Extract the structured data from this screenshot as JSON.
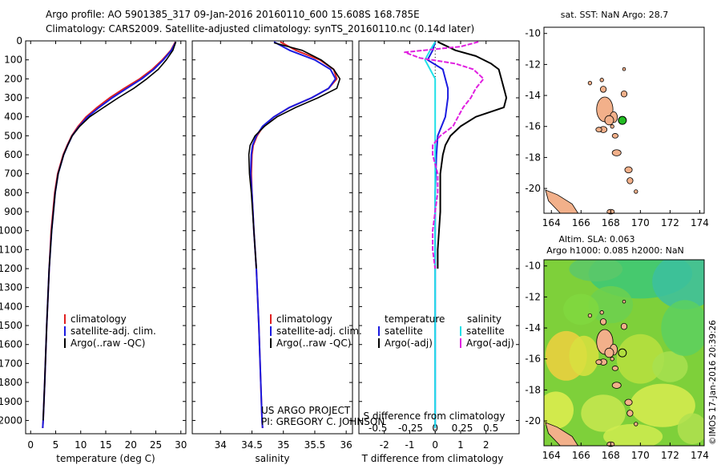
{
  "header": {
    "line1": "Argo profile: AO 5901385_317 09-Jan-2016 20160110_600 15.608S 168.785E",
    "line2": "Climatology: CARS2009. Satellite-adjusted climatology: synTS_20160110.nc (0.14d later)"
  },
  "depth_axis": {
    "ylim": [
      0,
      2070
    ],
    "ticks": [
      0,
      100,
      200,
      300,
      400,
      500,
      600,
      700,
      800,
      900,
      1000,
      1100,
      1200,
      1300,
      1400,
      1500,
      1600,
      1700,
      1800,
      1900,
      2000
    ]
  },
  "colors": {
    "climatology": "#e02020",
    "satellite": "#1b1be0",
    "argo": "#000000",
    "sal_satellite": "#20e0e8",
    "sal_argo": "#e020e0",
    "land": "#f2b08a",
    "sat_marker": "#22bb22"
  },
  "chart_data": [
    {
      "type": "line",
      "xlabel": "temperature (deg C)",
      "xlim": [
        -1,
        31
      ],
      "xticks": [
        0,
        5,
        10,
        15,
        20,
        25,
        30
      ],
      "legend": [
        "climatology",
        "satellite-adj. clim.",
        "Argo(..raw -QC)"
      ],
      "series": [
        {
          "name": "climatology",
          "color": "#e02020",
          "depth": [
            5,
            50,
            100,
            150,
            200,
            250,
            300,
            350,
            400,
            450,
            500,
            550,
            600,
            700,
            800,
            1000,
            1200,
            1500,
            1800,
            2000,
            2040
          ],
          "values": [
            28.9,
            28.0,
            26.3,
            24.3,
            21.8,
            18.7,
            15.8,
            13.3,
            11.1,
            9.5,
            8.2,
            7.3,
            6.5,
            5.4,
            4.8,
            4.1,
            3.7,
            3.2,
            2.8,
            2.5,
            2.4
          ]
        },
        {
          "name": "satellite-adj. clim.",
          "color": "#1b1be0",
          "depth": [
            5,
            50,
            100,
            150,
            200,
            250,
            300,
            350,
            400,
            450,
            500,
            550,
            600,
            700,
            800,
            1000,
            1200,
            1500,
            1800,
            2000,
            2040
          ],
          "values": [
            29.0,
            28.1,
            26.5,
            24.6,
            22.2,
            19.2,
            16.3,
            13.7,
            11.4,
            9.7,
            8.3,
            7.4,
            6.6,
            5.5,
            4.9,
            4.2,
            3.7,
            3.2,
            2.8,
            2.5,
            2.4
          ]
        },
        {
          "name": "Argo(..raw -QC)",
          "color": "#000000",
          "depth": [
            5,
            50,
            100,
            150,
            200,
            250,
            300,
            350,
            400,
            450,
            500,
            550,
            600,
            700,
            800,
            1000,
            1200,
            1500,
            1800,
            2000
          ],
          "values": [
            29.0,
            28.4,
            27.1,
            25.5,
            23.2,
            20.6,
            17.5,
            14.6,
            11.8,
            9.8,
            8.3,
            7.4,
            6.6,
            5.5,
            4.9,
            4.2,
            3.7,
            3.2,
            2.8,
            2.5
          ]
        }
      ]
    },
    {
      "type": "line",
      "xlabel": "salinity",
      "xlim": [
        33.55,
        36.1
      ],
      "xticks": [
        34,
        34.5,
        35,
        35.5,
        36
      ],
      "legend": [
        "climatology",
        "satellite-adj. clim.",
        "Argo(..raw -QC)"
      ],
      "series": [
        {
          "name": "climatology",
          "color": "#e02020",
          "depth": [
            5,
            50,
            100,
            150,
            200,
            250,
            300,
            350,
            400,
            450,
            500,
            550,
            600,
            700,
            800,
            1000,
            1200,
            1500,
            1800,
            2000,
            2040
          ],
          "values": [
            34.95,
            35.2,
            35.58,
            35.8,
            35.85,
            35.72,
            35.45,
            35.1,
            34.85,
            34.68,
            34.58,
            34.52,
            34.5,
            34.49,
            34.5,
            34.53,
            34.57,
            34.61,
            34.64,
            34.66,
            34.67
          ]
        },
        {
          "name": "satellite-adj. clim.",
          "color": "#1b1be0",
          "depth": [
            5,
            50,
            100,
            150,
            200,
            250,
            300,
            350,
            400,
            450,
            500,
            550,
            600,
            700,
            800,
            1000,
            1200,
            1500,
            1800,
            2000,
            2040
          ],
          "values": [
            34.85,
            35.1,
            35.5,
            35.75,
            35.83,
            35.72,
            35.45,
            35.1,
            34.85,
            34.67,
            34.57,
            34.51,
            34.49,
            34.48,
            34.5,
            34.53,
            34.57,
            34.61,
            34.64,
            34.66,
            34.67
          ]
        },
        {
          "name": "Argo(..raw -QC)",
          "color": "#000000",
          "depth": [
            10,
            50,
            100,
            150,
            200,
            250,
            300,
            350,
            400,
            450,
            500,
            550,
            600,
            700,
            800,
            1000,
            1200
          ],
          "values": [
            34.85,
            35.3,
            35.6,
            35.8,
            35.9,
            35.85,
            35.55,
            35.2,
            34.9,
            34.7,
            34.55,
            34.47,
            34.45,
            34.46,
            34.49,
            34.53,
            34.57
          ]
        }
      ]
    },
    {
      "type": "line",
      "xlabel": "T difference from climatology",
      "xlabel2": "S difference from climatology",
      "xlim": [
        -3,
        3.3
      ],
      "xticks": [
        -2,
        -1,
        0,
        1,
        2
      ],
      "xticks_s": [
        "-0.5",
        "-0.25",
        "0",
        "0.25",
        "0.5"
      ],
      "legend_t": [
        "temperature",
        "satellite",
        "Argo(-adj)"
      ],
      "legend_s": [
        "salinity",
        "satellite",
        "Argo(-adj)"
      ],
      "series": [
        {
          "name": "satellite",
          "color": "#1b1be0",
          "depth": [
            5,
            50,
            100,
            150,
            200,
            250,
            300,
            400,
            500,
            600,
            800,
            1000,
            1200,
            1500,
            2000,
            2040
          ],
          "values": [
            0.0,
            -0.1,
            -0.3,
            0.3,
            0.4,
            0.5,
            0.5,
            0.4,
            0.1,
            0.05,
            0.0,
            0.0,
            0.0,
            0.0,
            0.0,
            0.0
          ]
        },
        {
          "name": "Argo(-adj)",
          "color": "#000000",
          "depth": [
            5,
            50,
            80,
            120,
            150,
            200,
            250,
            300,
            350,
            400,
            450,
            500,
            550,
            600,
            700,
            800,
            900,
            1000,
            1100,
            1200
          ],
          "values": [
            0.1,
            0.8,
            1.6,
            2.2,
            2.5,
            2.6,
            2.7,
            2.8,
            2.7,
            1.6,
            1.0,
            0.6,
            0.4,
            0.3,
            0.2,
            0.2,
            0.2,
            0.15,
            0.1,
            0.1
          ]
        },
        {
          "name": "satellite",
          "color": "#20e0e8",
          "depth": [
            5,
            50,
            100,
            150,
            200,
            300,
            400,
            500,
            600,
            800,
            1000,
            1200,
            1500,
            2000,
            2040
          ],
          "values": [
            0.0,
            -0.2,
            -0.4,
            -0.2,
            0.0,
            0.0,
            0.0,
            0.0,
            0.0,
            0.0,
            0.0,
            0.0,
            0.0,
            0.0,
            0.0
          ]
        },
        {
          "name": "Argo(-adj)",
          "color": "#e020e0",
          "depth": [
            5,
            30,
            60,
            90,
            120,
            150,
            200,
            250,
            300,
            350,
            400,
            450,
            500,
            550,
            600,
            700,
            800,
            900,
            1000,
            1100,
            1200
          ],
          "values": [
            1.7,
            1.0,
            -1.2,
            -0.6,
            0.8,
            1.5,
            1.9,
            1.6,
            1.4,
            1.1,
            0.9,
            0.7,
            0.2,
            -0.1,
            -0.1,
            0.1,
            0.1,
            0.0,
            -0.1,
            -0.1,
            0.0
          ]
        }
      ]
    }
  ],
  "map_sst": {
    "title": "sat. SST: NaN Argo: 28.7",
    "xticks": [
      "164",
      "166",
      "168",
      "170",
      "172",
      "174"
    ],
    "yticks": [
      "-10",
      "-12",
      "-14",
      "-16",
      "-18",
      "-20"
    ],
    "xlim": [
      163.5,
      174.3
    ],
    "ylim": [
      -21.6,
      -9.6
    ],
    "argo_position": [
      168.785,
      -15.608
    ]
  },
  "map_sla": {
    "title1": "Altim. SLA: 0.063",
    "title2": "Argo h1000: 0.085 h2000: NaN",
    "xticks": [
      "164",
      "166",
      "168",
      "170",
      "172",
      "174"
    ],
    "yticks": [
      "-10",
      "-12",
      "-14",
      "-16",
      "-18",
      "-20"
    ],
    "xlim": [
      163.5,
      174.3
    ],
    "ylim": [
      -21.6,
      -9.6
    ],
    "argo_position": [
      168.785,
      -15.608
    ]
  },
  "credits": {
    "line1": "US ARGO PROJECT",
    "line2": "PI: GREGORY C. JOHNSON"
  },
  "stamp": "©IMOS 17-Jan-2016 20:39:26"
}
